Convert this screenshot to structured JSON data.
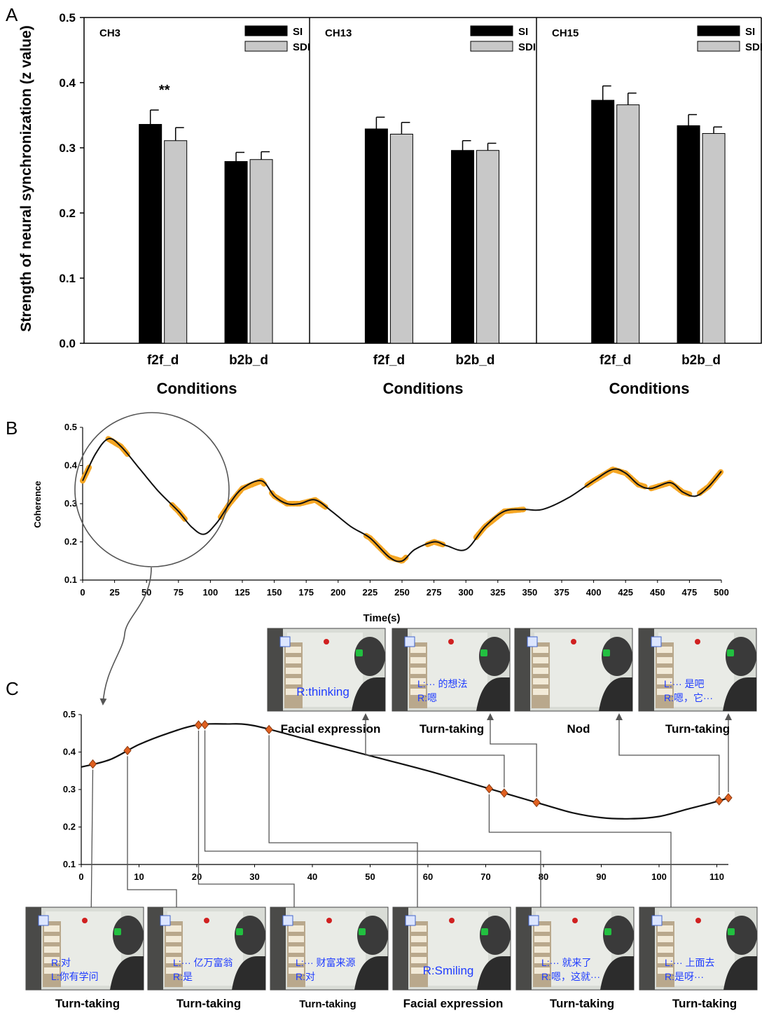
{
  "panel_letters": [
    "A",
    "B",
    "C"
  ],
  "colors": {
    "si": "#000000",
    "sdi": "#c8c8c8",
    "highlight": "#f5a623",
    "marker": "#e06020",
    "caption_text": "#1f3cff"
  },
  "chart_data": [
    {
      "id": "A",
      "type": "bar",
      "ylabel": "Strength of neural synchronization (z value)",
      "ylim": [
        0,
        0.5
      ],
      "yticks": [
        "0.0",
        "0.1",
        "0.2",
        "0.3",
        "0.4",
        "0.5"
      ],
      "legend_position": "top-right",
      "subpanels": [
        {
          "channel": "CH3",
          "xlabel": "Conditions",
          "categories": [
            "f2f_d",
            "b2b_d"
          ],
          "series": [
            {
              "name": "SI",
              "values": [
                0.336,
                0.279
              ],
              "errors": [
                0.022,
                0.014
              ]
            },
            {
              "name": "SDI",
              "values": [
                0.311,
                0.282
              ],
              "errors": [
                0.02,
                0.012
              ]
            }
          ],
          "significance": "**"
        },
        {
          "channel": "CH13",
          "xlabel": "Conditions",
          "categories": [
            "f2f_d",
            "b2b_d"
          ],
          "series": [
            {
              "name": "SI",
              "values": [
                0.329,
                0.296
              ],
              "errors": [
                0.018,
                0.015
              ]
            },
            {
              "name": "SDI",
              "values": [
                0.321,
                0.296
              ],
              "errors": [
                0.018,
                0.011
              ]
            }
          ],
          "significance": ""
        },
        {
          "channel": "CH15",
          "xlabel": "Conditions",
          "categories": [
            "f2f_d",
            "b2b_d"
          ],
          "series": [
            {
              "name": "SI",
              "values": [
                0.373,
                0.334
              ],
              "errors": [
                0.022,
                0.017
              ]
            },
            {
              "name": "SDI",
              "values": [
                0.366,
                0.322
              ],
              "errors": [
                0.018,
                0.01
              ]
            }
          ],
          "significance": ""
        }
      ]
    },
    {
      "id": "B",
      "type": "line",
      "xlabel": "Time(s)",
      "ylabel": "Coherence",
      "xlim": [
        0,
        500
      ],
      "ylim": [
        0.1,
        0.5
      ],
      "xticks": [
        "0",
        "25",
        "50",
        "75",
        "100",
        "125",
        "150",
        "175",
        "200",
        "225",
        "250",
        "275",
        "300",
        "325",
        "350",
        "375",
        "400",
        "425",
        "450",
        "475",
        "500"
      ],
      "yticks": [
        "0.1",
        "0.2",
        "0.3",
        "0.4",
        "0.5"
      ],
      "x": [
        0,
        10,
        20,
        30,
        45,
        60,
        75,
        85,
        95,
        105,
        115,
        125,
        140,
        150,
        160,
        170,
        182,
        195,
        210,
        225,
        240,
        250,
        260,
        275,
        285,
        300,
        315,
        330,
        345,
        360,
        380,
        400,
        415,
        425,
        435,
        445,
        460,
        470,
        480,
        490,
        500
      ],
      "y": [
        0.36,
        0.43,
        0.47,
        0.45,
        0.39,
        0.33,
        0.28,
        0.24,
        0.22,
        0.25,
        0.3,
        0.34,
        0.36,
        0.32,
        0.3,
        0.3,
        0.31,
        0.28,
        0.24,
        0.21,
        0.16,
        0.15,
        0.18,
        0.2,
        0.19,
        0.18,
        0.24,
        0.28,
        0.285,
        0.285,
        0.315,
        0.36,
        0.39,
        0.38,
        0.35,
        0.34,
        0.355,
        0.33,
        0.32,
        0.345,
        0.385
      ],
      "highlight_ranges": [
        [
          0,
          5
        ],
        [
          20,
          35
        ],
        [
          70,
          80
        ],
        [
          108,
          142
        ],
        [
          148,
          190
        ],
        [
          222,
          253
        ],
        [
          270,
          282
        ],
        [
          308,
          345
        ],
        [
          395,
          440
        ],
        [
          445,
          475
        ],
        [
          483,
          500
        ]
      ]
    },
    {
      "id": "C",
      "type": "line",
      "xlim": [
        0,
        112
      ],
      "ylim": [
        0.1,
        0.5
      ],
      "xticks": [
        "0",
        "10",
        "20",
        "30",
        "40",
        "50",
        "60",
        "70",
        "80",
        "90",
        "100",
        "110"
      ],
      "yticks": [
        "0.1",
        "0.2",
        "0.3",
        "0.4",
        "0.5"
      ],
      "x": [
        0,
        5,
        10,
        15,
        20,
        25,
        30,
        40,
        50,
        60,
        70,
        80,
        85,
        90,
        95,
        100,
        105,
        110,
        112
      ],
      "y": [
        0.36,
        0.38,
        0.42,
        0.45,
        0.472,
        0.475,
        0.47,
        0.43,
        0.39,
        0.35,
        0.305,
        0.26,
        0.238,
        0.225,
        0.222,
        0.228,
        0.248,
        0.268,
        0.278
      ],
      "markers_x": [
        2,
        8,
        20.3,
        21.4,
        32.5,
        70.6,
        73.2,
        78.8,
        110.4,
        112
      ]
    }
  ],
  "frames_top": [
    {
      "caption": "R:thinking",
      "label": "Facial expression"
    },
    {
      "caption": "L:··· 的想法\nR:嗯",
      "label": "Turn-taking"
    },
    {
      "caption": "",
      "label": "Nod"
    },
    {
      "caption": "L:··· 是吧\nR:嗯，它···",
      "label": "Turn-taking"
    }
  ],
  "frames_bottom": [
    {
      "caption": "R:对\nL:你有学问",
      "label": "Turn-taking"
    },
    {
      "caption": "L:··· 亿万富翁\nR:是",
      "label": "Turn-taking"
    },
    {
      "caption": "L:··· 财富来源\nR:对",
      "label": "Turn-taking"
    },
    {
      "caption": "R:Smiling",
      "label": "Facial expression"
    },
    {
      "caption": "L:··· 就来了\nR:嗯，这就···",
      "label": "Turn-taking"
    },
    {
      "caption": "L:··· 上面去\nR:是呀···",
      "label": "Turn-taking"
    }
  ]
}
